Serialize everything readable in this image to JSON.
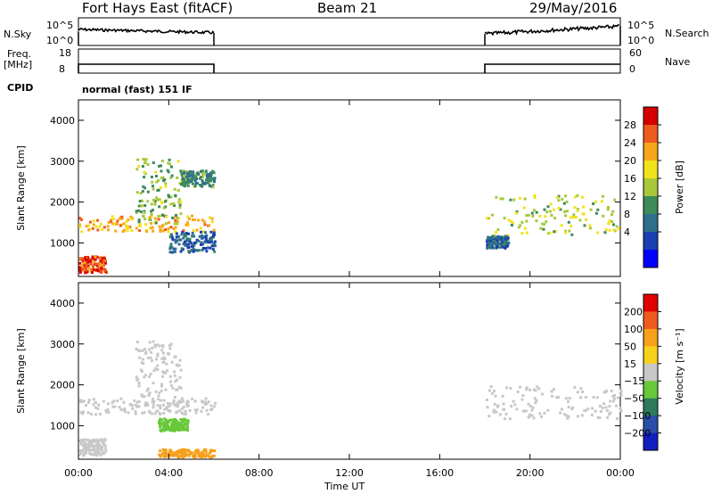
{
  "header": {
    "title": "Fort Hays East (fitACF)",
    "beam": "Beam 21",
    "date": "29/May/2016"
  },
  "top_panels": {
    "nsky_label": "N.Sky",
    "nsky_ticks": [
      "10^5",
      "10^0"
    ],
    "nsearch_label": "N.Search",
    "nsearch_ticks": [
      "10^5",
      "10^0"
    ],
    "freq_label": "Freq.",
    "freq_unit": "[MHz]",
    "freq_ticks": [
      "18",
      "8"
    ],
    "nave_label": "Nave",
    "nave_ticks": [
      "60",
      "0"
    ],
    "cpid_label": "CPID",
    "cpid_value": "normal (fast) 151 IF"
  },
  "chart_data": [
    {
      "type": "heatmap",
      "panel": "power",
      "ylabel": "Slant Range [km]",
      "xlabel": "",
      "xticks": [
        "00:00",
        "04:00",
        "08:00",
        "12:00",
        "16:00",
        "20:00",
        "00:00"
      ],
      "xlim_hours": [
        0,
        24
      ],
      "ylim_km": [
        180,
        4500
      ],
      "yticks": [
        "1000",
        "2000",
        "3000",
        "4000"
      ],
      "colorbar": {
        "label": "Power [dB]",
        "ticks": [
          "28",
          "24",
          "20",
          "16",
          "12",
          "8",
          "4"
        ],
        "range": [
          0,
          30
        ],
        "colors": [
          "#0000ff",
          "#1a3fb0",
          "#2e6f8c",
          "#3d8a5a",
          "#a8c83a",
          "#f2e21a",
          "#f7a61c",
          "#ef5a1f",
          "#d40000"
        ]
      },
      "echo_bands": [
        {
          "t": [
            0.0,
            6.0
          ],
          "range_km": [
            1300,
            1700
          ],
          "power_db": 22
        },
        {
          "t": [
            0.0,
            1.2
          ],
          "range_km": [
            300,
            700
          ],
          "power_db": 27
        },
        {
          "t": [
            2.5,
            4.5
          ],
          "range_km": [
            1500,
            3100
          ],
          "power_db": 14
        },
        {
          "t": [
            4.5,
            6.0
          ],
          "range_km": [
            2400,
            2800
          ],
          "power_db": 10
        },
        {
          "t": [
            4.0,
            6.0
          ],
          "range_km": [
            800,
            1300
          ],
          "power_db": 6
        },
        {
          "t": [
            18.0,
            24.0
          ],
          "range_km": [
            1200,
            2200
          ],
          "power_db": 16
        },
        {
          "t": [
            18.0,
            19.0
          ],
          "range_km": [
            900,
            1200
          ],
          "power_db": 7
        }
      ]
    },
    {
      "type": "heatmap",
      "panel": "velocity",
      "ylabel": "Slant Range [km]",
      "xlabel": "Time UT",
      "xticks": [
        "00:00",
        "04:00",
        "08:00",
        "12:00",
        "16:00",
        "20:00",
        "00:00"
      ],
      "xlim_hours": [
        0,
        24
      ],
      "ylim_km": [
        180,
        4500
      ],
      "yticks": [
        "1000",
        "2000",
        "3000",
        "4000"
      ],
      "colorbar": {
        "label": "Velocity [m s⁻¹]",
        "ticks": [
          "200",
          "100",
          "50",
          "15",
          "−15",
          "−50",
          "−100",
          "−200"
        ],
        "colors": [
          "#1020c0",
          "#2a4fa8",
          "#2e7a5a",
          "#68c83a",
          "#c8c8c8",
          "#f7d21a",
          "#f7a01c",
          "#ef5a1f",
          "#e00000"
        ]
      },
      "echo_bands": [
        {
          "t": [
            0.0,
            6.0
          ],
          "range_km": [
            1300,
            1700
          ],
          "velocity": 0
        },
        {
          "t": [
            0.0,
            1.2
          ],
          "range_km": [
            300,
            700
          ],
          "velocity": 0
        },
        {
          "t": [
            2.5,
            4.5
          ],
          "range_km": [
            1500,
            3100
          ],
          "velocity": 0
        },
        {
          "t": [
            3.5,
            4.8
          ],
          "range_km": [
            900,
            1200
          ],
          "velocity": 40
        },
        {
          "t": [
            3.5,
            6.0
          ],
          "range_km": [
            250,
            450
          ],
          "velocity": -80
        },
        {
          "t": [
            18.0,
            24.0
          ],
          "range_km": [
            1200,
            2000
          ],
          "velocity": 0
        }
      ]
    }
  ]
}
